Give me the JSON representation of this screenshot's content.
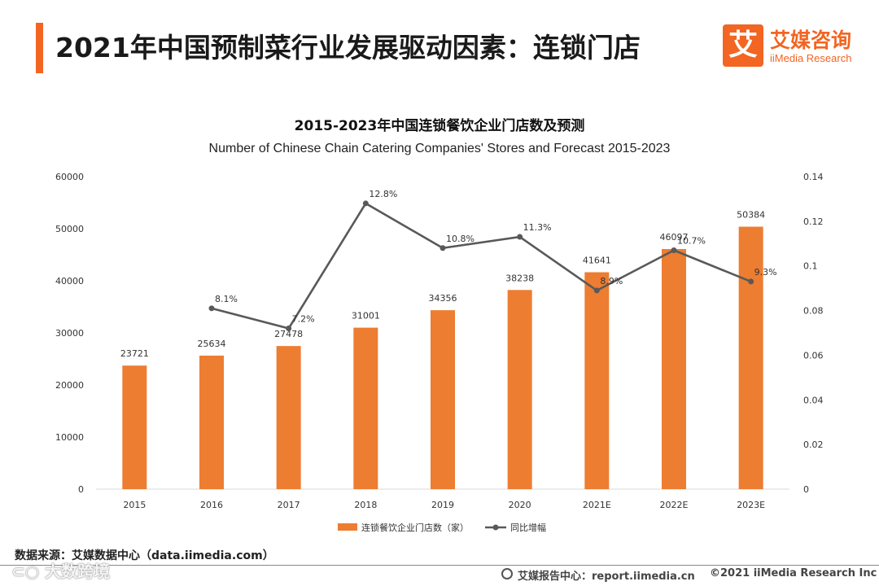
{
  "header": {
    "title": "2021年中国预制菜行业发展驱动因素：连锁门店",
    "logo_mark": "艾",
    "logo_cn": "艾媒咨询",
    "logo_en": "iiMedia Research",
    "accent_color": "#f26522"
  },
  "chart_data": {
    "type": "bar",
    "title": "2015-2023年中国连锁餐饮企业门店数及预测",
    "subtitle": "Number of Chinese Chain Catering Companies' Stores and Forecast 2015-2023",
    "categories": [
      "2015",
      "2016",
      "2017",
      "2018",
      "2019",
      "2020",
      "2021E",
      "2022E",
      "2023E"
    ],
    "series": [
      {
        "name": "连锁餐饮企业门店数（家）",
        "type": "bar",
        "axis": "left",
        "color": "#ed7d31",
        "values": [
          23721,
          25634,
          27478,
          31001,
          34356,
          38238,
          41641,
          46097,
          50384
        ],
        "labels": [
          "23721",
          "25634",
          "27478",
          "31001",
          "34356",
          "38238",
          "41641",
          "46097",
          "50384"
        ]
      },
      {
        "name": "同比增幅",
        "type": "line",
        "axis": "right",
        "color": "#595959",
        "values": [
          null,
          0.081,
          0.072,
          0.128,
          0.108,
          0.113,
          0.089,
          0.107,
          0.093
        ],
        "labels": [
          "",
          "8.1%",
          "7.2%",
          "12.8%",
          "10.8%",
          "11.3%",
          "8.9%",
          "10.7%",
          "9.3%"
        ]
      }
    ],
    "y_left": {
      "min": 0,
      "max": 60000,
      "ticks": [
        "0",
        "10000",
        "20000",
        "30000",
        "40000",
        "50000",
        "60000"
      ]
    },
    "y_right": {
      "min": 0,
      "max": 0.14,
      "ticks": [
        "0",
        "0.02",
        "0.04",
        "0.06",
        "0.08",
        "0.1",
        "0.12",
        "0.14"
      ]
    },
    "grid": false,
    "legend_position": "bottom"
  },
  "footer": {
    "source": "数据来源：艾媒数据中心（data.iimedia.com）",
    "report_center": "艾媒报告中心：report.iimedia.cn",
    "copyright": "©2021  iiMedia Research  Inc",
    "watermark": "⊂○ 大数跨境"
  }
}
